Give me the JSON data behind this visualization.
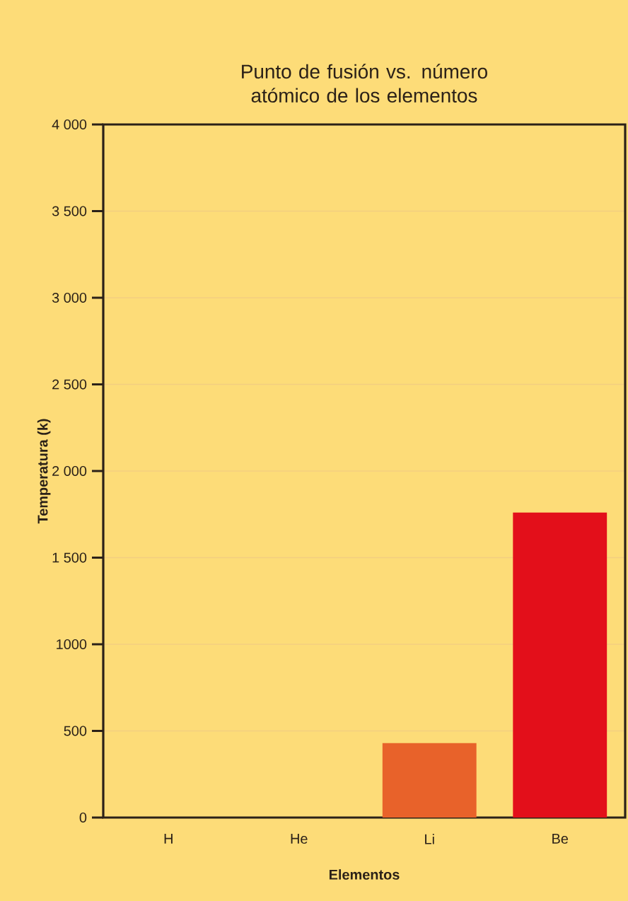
{
  "chart_data": {
    "type": "bar",
    "title": "Punto de fusión vs. número atómico de los elementos",
    "xlabel": "Elementos",
    "ylabel": "Temperatura (k)",
    "categories": [
      "H",
      "He",
      "Li",
      "Be"
    ],
    "values": [
      0,
      0,
      430,
      1760
    ],
    "colors": [
      "#e8622a",
      "#e8622a",
      "#e8622a",
      "#e30f1a"
    ],
    "ylim": [
      0,
      4000
    ],
    "yticks": [
      0,
      500,
      {
        "value": 1000,
        "label": "1000"
      },
      {
        "value": 1500,
        "label": "1 500"
      },
      {
        "value": 2000,
        "label": "2 000"
      },
      {
        "value": 2500,
        "label": "2 500"
      },
      {
        "value": 3000,
        "label": "3 000"
      },
      {
        "value": 3500,
        "label": "3 500"
      },
      {
        "value": 4000,
        "label": "4 000"
      }
    ],
    "grid": "y"
  }
}
